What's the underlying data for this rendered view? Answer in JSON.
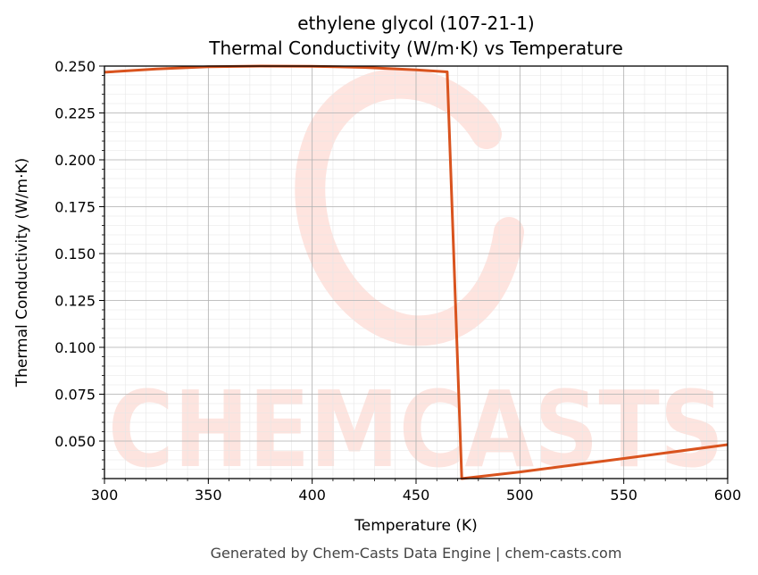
{
  "chart_data": {
    "type": "line",
    "title": "ethylene glycol (107-21-1)",
    "subtitle": "Thermal Conductivity (W/m·K) vs Temperature",
    "xlabel": "Temperature (K)",
    "ylabel": "Thermal Conductivity (W/m·K)",
    "xlim": [
      300,
      600
    ],
    "ylim": [
      0.03,
      0.25
    ],
    "xticks": [
      300,
      350,
      400,
      450,
      500,
      550,
      600
    ],
    "xtick_labels": [
      "300",
      "350",
      "400",
      "450",
      "500",
      "550",
      "600"
    ],
    "yticks": [
      0.05,
      0.075,
      0.1,
      0.125,
      0.15,
      0.175,
      0.2,
      0.225,
      0.25
    ],
    "ytick_labels": [
      "0.050",
      "0.075",
      "0.100",
      "0.125",
      "0.150",
      "0.175",
      "0.200",
      "0.225",
      "0.250"
    ],
    "grid": true,
    "series": [
      {
        "color": "#d9531e",
        "x": [
          300,
          325,
          350,
          375,
          400,
          425,
          450,
          465,
          472,
          500,
          550,
          600
        ],
        "y": [
          0.2467,
          0.2485,
          0.2496,
          0.25,
          0.2499,
          0.2493,
          0.248,
          0.2469,
          0.03,
          0.0335,
          0.0407,
          0.0481
        ]
      }
    ],
    "watermark": "CHEMCASTS"
  },
  "footer": "Generated by Chem-Casts Data Engine | chem-casts.com"
}
